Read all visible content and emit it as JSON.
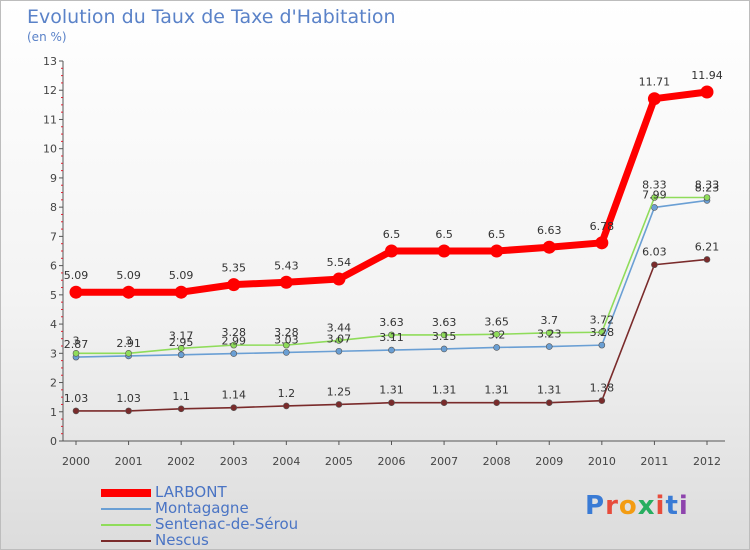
{
  "header": {
    "title": "Evolution du Taux de Taxe d'Habitation",
    "subtitle": "(en %)"
  },
  "logo": {
    "letters": [
      "P",
      "r",
      "o",
      "x",
      "i",
      "t",
      "i"
    ],
    "colors": [
      "#3a7bd5",
      "#e74c3c",
      "#f39c12",
      "#27ae60",
      "#e74c3c",
      "#3a7bd5",
      "#8e44ad"
    ]
  },
  "chart_data": {
    "type": "line",
    "title": "Evolution du Taux de Taxe d'Habitation",
    "ylabel": "(en %)",
    "x": [
      "2000",
      "2001",
      "2002",
      "2003",
      "2004",
      "2005",
      "2006",
      "2007",
      "2008",
      "2009",
      "2010",
      "2011",
      "2012"
    ],
    "ylim": [
      0,
      13
    ],
    "yticks": [
      "0",
      "1",
      "2",
      "3",
      "4",
      "5",
      "6",
      "7",
      "8",
      "9",
      "10",
      "11",
      "12",
      "13"
    ],
    "grid": false,
    "legend_position": "bottom-left",
    "series": [
      {
        "name": "LARBONT",
        "color": "#ff0000",
        "values": [
          5.09,
          5.09,
          5.09,
          5.35,
          5.43,
          5.54,
          6.5,
          6.5,
          6.5,
          6.63,
          6.78,
          11.71,
          11.94
        ],
        "labels": [
          "5.09",
          "5.09",
          "5.09",
          "5.35",
          "5.43",
          "5.54",
          "6.5",
          "6.5",
          "6.5",
          "6.63",
          "6.78",
          "11.71",
          "11.94"
        ]
      },
      {
        "name": "Montagagne",
        "color": "#6a9fd4",
        "values": [
          2.87,
          2.91,
          2.95,
          2.99,
          3.03,
          3.07,
          3.11,
          3.15,
          3.2,
          3.23,
          3.28,
          7.99,
          8.23
        ],
        "labels": [
          "2.87",
          "2.91",
          "2.95",
          "2.99",
          "3.03",
          "3.07",
          "3.11",
          "3.15",
          "3.2",
          "3.23",
          "3.28",
          "7.99",
          "8.23"
        ]
      },
      {
        "name": "Sentenac-de-Sérou",
        "color": "#8fdc5a",
        "values": [
          3,
          3,
          3.17,
          3.28,
          3.28,
          3.44,
          3.63,
          3.63,
          3.65,
          3.7,
          3.72,
          8.33,
          8.33
        ],
        "labels": [
          "3",
          "3",
          "3.17",
          "3.28",
          "3.28",
          "3.44",
          "3.63",
          "3.63",
          "3.65",
          "3.7",
          "3.72",
          "8.33",
          "8.33"
        ]
      },
      {
        "name": "Nescus",
        "color": "#7a2b2b",
        "values": [
          1.03,
          1.03,
          1.1,
          1.14,
          1.2,
          1.25,
          1.31,
          1.31,
          1.31,
          1.31,
          1.38,
          6.03,
          6.21
        ],
        "labels": [
          "1.03",
          "1.03",
          "1.1",
          "1.14",
          "1.2",
          "1.25",
          "1.31",
          "1.31",
          "1.31",
          "1.31",
          "1.38",
          "6.03",
          "6.21"
        ]
      }
    ]
  }
}
